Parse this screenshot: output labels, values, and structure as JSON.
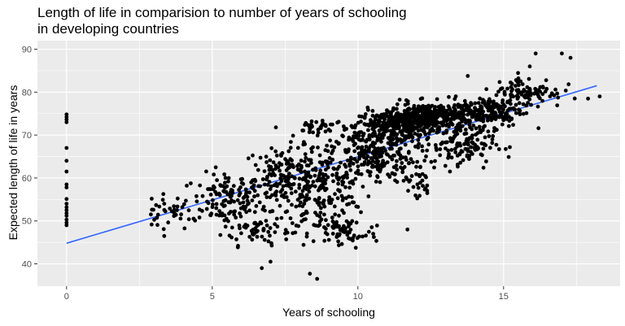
{
  "chart_data": {
    "type": "scatter",
    "title_line1": "Length of life in comparision to number of years of schooling",
    "title_line2": "in developing countries",
    "xlabel": "Years of schooling",
    "ylabel": "Expected length of life in years",
    "xlim": [
      -1.0,
      19.0
    ],
    "ylim": [
      34.8,
      92.0
    ],
    "x_ticks": [
      0,
      5,
      10,
      15
    ],
    "x_tick_labels": [
      "0",
      "5",
      "10",
      "15"
    ],
    "y_ticks": [
      40,
      50,
      60,
      70,
      80,
      90
    ],
    "y_tick_labels": [
      "40",
      "50",
      "60",
      "70",
      "80",
      "90"
    ],
    "grid": true,
    "legend": "none",
    "colors": {
      "panel": "#ebebeb",
      "grid": "#ffffff",
      "points": "#000000",
      "trend": "#3366ff"
    },
    "trend_line": {
      "x": [
        0.0,
        18.2
      ],
      "y": [
        44.8,
        81.5
      ]
    },
    "zero_schooling_points": [
      [
        0,
        49.0
      ],
      [
        0,
        49.6
      ],
      [
        0,
        50.3
      ],
      [
        0,
        51.2
      ],
      [
        0,
        51.8
      ],
      [
        0,
        52.5
      ],
      [
        0,
        53.2
      ],
      [
        0,
        54.0
      ],
      [
        0,
        55.1
      ],
      [
        0,
        57.8
      ],
      [
        0,
        58.5
      ],
      [
        0,
        61.5
      ],
      [
        0,
        64.0
      ],
      [
        0,
        67.0
      ],
      [
        0,
        73.0
      ],
      [
        0,
        73.6
      ],
      [
        0,
        74.2
      ],
      [
        0,
        74.8
      ]
    ],
    "point_clusters": [
      {
        "x_center": 3.5,
        "x_spread": 0.8,
        "y_center": 52.0,
        "y_spread": 3.5,
        "count": 40
      },
      {
        "x_center": 5.5,
        "x_spread": 1.0,
        "y_center": 55.0,
        "y_spread": 5.0,
        "count": 120
      },
      {
        "x_center": 6.5,
        "x_spread": 1.0,
        "y_center": 48.0,
        "y_spread": 3.0,
        "count": 60
      },
      {
        "x_center": 7.5,
        "x_spread": 1.2,
        "y_center": 60.0,
        "y_spread": 6.0,
        "count": 160
      },
      {
        "x_center": 8.8,
        "x_spread": 1.3,
        "y_center": 57.0,
        "y_spread": 8.0,
        "count": 200
      },
      {
        "x_center": 9.5,
        "x_spread": 1.0,
        "y_center": 47.0,
        "y_spread": 3.0,
        "count": 60
      },
      {
        "x_center": 10.5,
        "x_spread": 1.2,
        "y_center": 66.0,
        "y_spread": 6.0,
        "count": 250
      },
      {
        "x_center": 11.5,
        "x_spread": 1.2,
        "y_center": 72.5,
        "y_spread": 2.5,
        "count": 300
      },
      {
        "x_center": 12.5,
        "x_spread": 1.2,
        "y_center": 74.5,
        "y_spread": 2.5,
        "count": 300
      },
      {
        "x_center": 13.5,
        "x_spread": 1.0,
        "y_center": 68.0,
        "y_spread": 5.0,
        "count": 150
      },
      {
        "x_center": 14.5,
        "x_spread": 1.0,
        "y_center": 75.5,
        "y_spread": 3.0,
        "count": 150
      },
      {
        "x_center": 15.8,
        "x_spread": 1.0,
        "y_center": 80.0,
        "y_spread": 3.0,
        "count": 100
      },
      {
        "x_center": 12.0,
        "x_spread": 0.4,
        "y_center": 59.0,
        "y_spread": 4.0,
        "count": 30
      },
      {
        "x_center": 8.5,
        "x_spread": 0.8,
        "y_center": 72.0,
        "y_spread": 1.5,
        "count": 30
      }
    ],
    "outlier_points": [
      [
        6.7,
        39.0
      ],
      [
        8.6,
        36.5
      ],
      [
        7.0,
        40.5
      ],
      [
        11.7,
        48.0
      ],
      [
        17.0,
        89.0
      ],
      [
        16.1,
        89.0
      ],
      [
        17.3,
        88.0
      ],
      [
        15.9,
        86.0
      ],
      [
        18.3,
        79.0
      ],
      [
        17.9,
        78.5
      ]
    ]
  }
}
